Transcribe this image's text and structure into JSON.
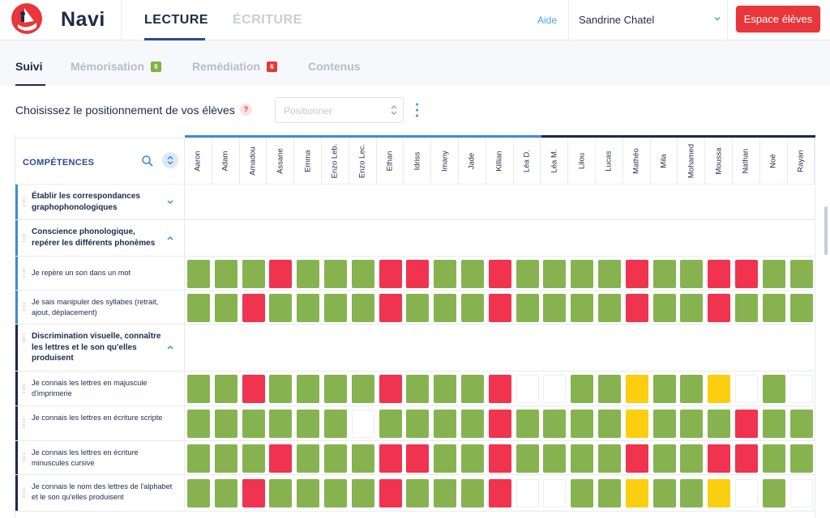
{
  "app": {
    "name": "Navi"
  },
  "header": {
    "tabs": [
      {
        "label": "LECTURE",
        "active": true
      },
      {
        "label": "ÉCRITURE",
        "active": false
      }
    ],
    "help": "Aide",
    "user": "Sandrine Chatel",
    "space_button": "Espace élèves"
  },
  "subtabs": [
    {
      "label": "Suivi",
      "active": true
    },
    {
      "label": "Mémorisation",
      "badge": "6",
      "badge_color": "#7cb342"
    },
    {
      "label": "Remédiation",
      "badge": "6",
      "badge_color": "#e8363a"
    },
    {
      "label": "Contenus"
    }
  ],
  "positioning": {
    "label": "Choisissez le positionnement de vos élèves",
    "help": "?",
    "select_placeholder": "Positionner"
  },
  "grid": {
    "competences_title": "COMPÉTENCES",
    "students": [
      "Aaron",
      "Adam",
      "Amadou",
      "Assane",
      "Emma",
      "Enzo Leb.",
      "Enzo Lec.",
      "Ethan",
      "Idriss",
      "Imany",
      "Jade",
      "Killian",
      "Léa D.",
      "Léa M.",
      "Lilou",
      "Lucas",
      "Mathéo",
      "Mila",
      "Mohamed",
      "Moussa",
      "Nathan",
      "Noé",
      "Rayan"
    ],
    "colors": {
      "acquired": "#86b350",
      "not_acquired": "#f0334f",
      "in_progress": "#fbcf0f",
      "empty": "#ffffff"
    },
    "rows": [
      {
        "type": "category",
        "label": "Établir les correspondances graphophonologiques",
        "accent": "#3b8fd0",
        "chevron": "down"
      },
      {
        "type": "category",
        "label": "Conscience phonologique, repérer les différents phonèmes",
        "accent": "#3b8fd0",
        "chevron": "up"
      },
      {
        "type": "item",
        "label": "Je repère un son dans un mot",
        "accent": "#3b8fd0",
        "statuses": [
          "g",
          "g",
          "g",
          "r",
          "g",
          "g",
          "g",
          "r",
          "r",
          "g",
          "g",
          "r",
          "g",
          "g",
          "g",
          "g",
          "r",
          "g",
          "g",
          "r",
          "r",
          "g",
          "g"
        ]
      },
      {
        "type": "item",
        "label": "Je sais manipuler des syllabes (retrait, ajout, déplacement)",
        "accent": "#3b8fd0",
        "statuses": [
          "g",
          "g",
          "r",
          "g",
          "g",
          "g",
          "g",
          "r",
          "g",
          "g",
          "g",
          "r",
          "g",
          "g",
          "g",
          "g",
          "r",
          "g",
          "g",
          "r",
          "g",
          "g",
          "g"
        ]
      },
      {
        "type": "category",
        "label": "Discrimination visuelle, connaître les lettres et le son qu'elles produisent",
        "accent": "#1e2a4a",
        "chevron": "up"
      },
      {
        "type": "item",
        "label": "Je connais les lettres en majuscule d'imprimerie",
        "accent": "#1e2a4a",
        "statuses": [
          "g",
          "g",
          "r",
          "g",
          "g",
          "g",
          "g",
          "r",
          "g",
          "g",
          "g",
          "r",
          "w",
          "w",
          "g",
          "g",
          "y",
          "g",
          "g",
          "y",
          "w",
          "g",
          "w"
        ]
      },
      {
        "type": "item",
        "label": "Je connais les lettres en écriture scripte",
        "accent": "#1e2a4a",
        "statuses": [
          "g",
          "g",
          "g",
          "g",
          "g",
          "g",
          "w",
          "g",
          "g",
          "g",
          "g",
          "r",
          "g",
          "g",
          "g",
          "g",
          "y",
          "g",
          "g",
          "g",
          "r",
          "g",
          "g"
        ]
      },
      {
        "type": "item",
        "label": "Je connais les lettres en écriture minuscules cursive",
        "accent": "#1e2a4a",
        "statuses": [
          "g",
          "g",
          "g",
          "r",
          "g",
          "g",
          "g",
          "r",
          "r",
          "g",
          "g",
          "r",
          "g",
          "g",
          "g",
          "g",
          "r",
          "g",
          "g",
          "r",
          "r",
          "g",
          "g"
        ]
      },
      {
        "type": "item",
        "label": "Je connais le nom des lettres de l'alphabet et le son qu'elles produisent",
        "accent": "#1e2a4a",
        "statuses": [
          "g",
          "g",
          "r",
          "g",
          "g",
          "g",
          "g",
          "r",
          "g",
          "g",
          "g",
          "r",
          "w",
          "w",
          "g",
          "g",
          "y",
          "g",
          "g",
          "y",
          "w",
          "g",
          "w"
        ]
      }
    ]
  }
}
